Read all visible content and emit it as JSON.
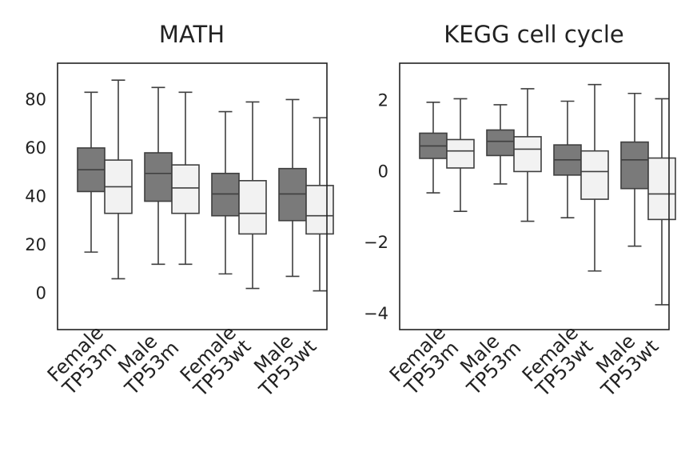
{
  "chart_data": [
    {
      "type": "box",
      "title": "MATH",
      "xlabel": "",
      "ylabel": "",
      "ylim": [
        -15,
        95
      ],
      "yticks": [
        "0",
        "20",
        "40",
        "60",
        "80"
      ],
      "categories": [
        [
          "Female",
          "TP53m"
        ],
        [
          "Male",
          "TP53m"
        ],
        [
          "Female",
          "TP53wt"
        ],
        [
          "Male",
          "TP53wt"
        ]
      ],
      "colors": {
        "dark": "#7a7a7a",
        "light": "#f2f2f2",
        "line": "#3f3f3f"
      },
      "groups": [
        {
          "boxes": [
            {
              "shade": "dark",
              "whislo": 17,
              "q1": 42,
              "median": 51,
              "q3": 60,
              "whishi": 83
            },
            {
              "shade": "light",
              "whislo": 6,
              "q1": 33,
              "median": 44,
              "q3": 55,
              "whishi": 88
            }
          ]
        },
        {
          "boxes": [
            {
              "shade": "dark",
              "whislo": 12,
              "q1": 38,
              "median": 49.5,
              "q3": 58,
              "whishi": 85
            },
            {
              "shade": "light",
              "whislo": 12,
              "q1": 33,
              "median": 43.5,
              "q3": 53,
              "whishi": 83
            }
          ]
        },
        {
          "boxes": [
            {
              "shade": "dark",
              "whislo": 8,
              "q1": 32,
              "median": 41,
              "q3": 49.5,
              "whishi": 75
            },
            {
              "shade": "light",
              "whislo": 2,
              "q1": 24.5,
              "median": 33,
              "q3": 46.5,
              "whishi": 79
            }
          ]
        },
        {
          "boxes": [
            {
              "shade": "dark",
              "whislo": 7,
              "q1": 30,
              "median": 41,
              "q3": 51.5,
              "whishi": 80
            },
            {
              "shade": "light",
              "whislo": 1,
              "q1": 24.5,
              "median": 32,
              "q3": 44.5,
              "whishi": 72.5
            }
          ]
        }
      ]
    },
    {
      "type": "box",
      "title": "KEGG cell cycle",
      "xlabel": "",
      "ylabel": "",
      "ylim": [
        -4.45,
        3.05
      ],
      "yticks": [
        "−4",
        "−2",
        "0",
        "2"
      ],
      "categories": [
        [
          "Female",
          "TP53m"
        ],
        [
          "Male",
          "TP53m"
        ],
        [
          "Female",
          "TP53wt"
        ],
        [
          "Male",
          "TP53wt"
        ]
      ],
      "colors": {
        "dark": "#7a7a7a",
        "light": "#f2f2f2",
        "line": "#3f3f3f"
      },
      "groups": [
        {
          "boxes": [
            {
              "shade": "dark",
              "whislo": -0.6,
              "q1": 0.37,
              "median": 0.72,
              "q3": 1.08,
              "whishi": 1.95
            },
            {
              "shade": "light",
              "whislo": -1.12,
              "q1": 0.1,
              "median": 0.58,
              "q3": 0.9,
              "whishi": 2.05
            }
          ]
        },
        {
          "boxes": [
            {
              "shade": "dark",
              "whislo": -0.35,
              "q1": 0.45,
              "median": 0.85,
              "q3": 1.17,
              "whishi": 1.88
            },
            {
              "shade": "light",
              "whislo": -1.4,
              "q1": 0.0,
              "median": 0.63,
              "q3": 0.98,
              "whishi": 2.33
            }
          ]
        },
        {
          "boxes": [
            {
              "shade": "dark",
              "whislo": -1.3,
              "q1": -0.1,
              "median": 0.33,
              "q3": 0.75,
              "whishi": 1.98
            },
            {
              "shade": "light",
              "whislo": -2.8,
              "q1": -0.78,
              "median": 0.0,
              "q3": 0.58,
              "whishi": 2.45
            }
          ]
        },
        {
          "boxes": [
            {
              "shade": "dark",
              "whislo": -2.1,
              "q1": -0.48,
              "median": 0.33,
              "q3": 0.83,
              "whishi": 2.2
            },
            {
              "shade": "light",
              "whislo": -3.75,
              "q1": -1.35,
              "median": -0.63,
              "q3": 0.38,
              "whishi": 2.05
            }
          ]
        }
      ]
    }
  ]
}
